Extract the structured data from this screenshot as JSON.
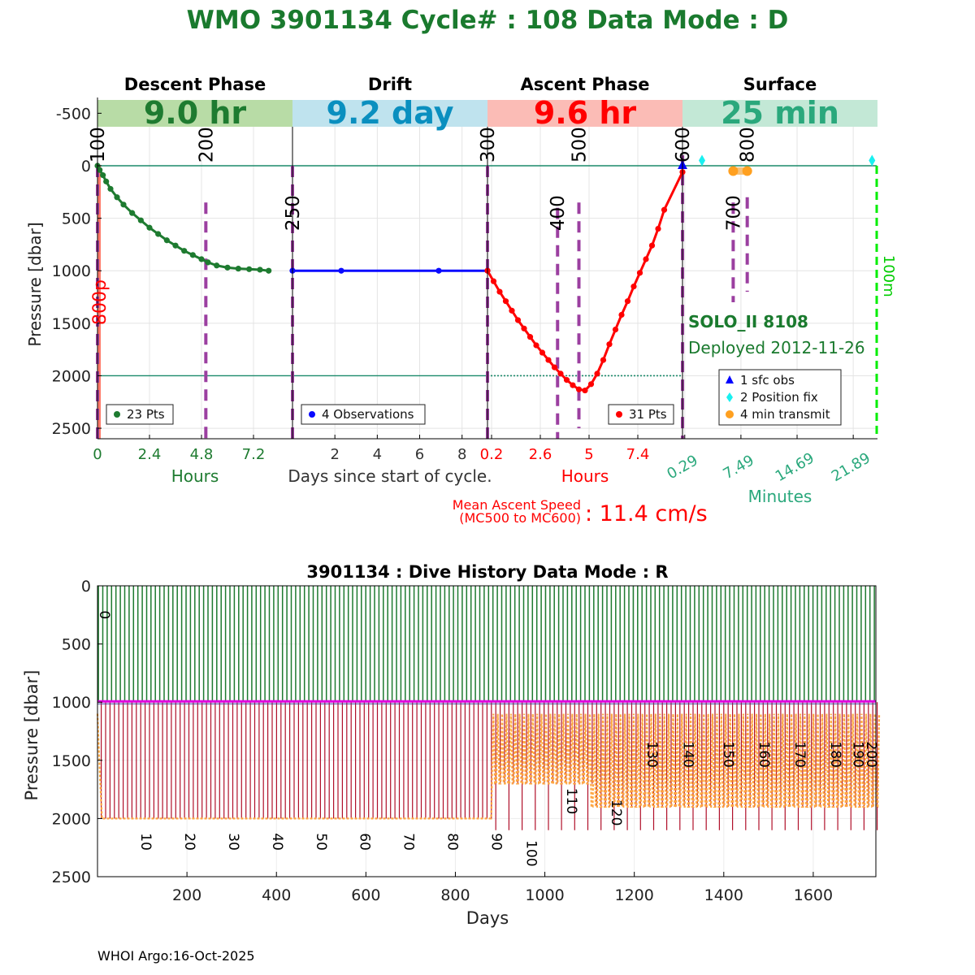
{
  "title": "WMO 3901134   Cycle# : 108   Data Mode : D",
  "footer": "WHOI Argo:16-Oct-2025",
  "colors": {
    "title": "#1a7a2e",
    "descent": "#1e7b30",
    "drift": "#0a0aff",
    "ascent": "#ff0000",
    "surface": "#2aa87c",
    "mc_line": "#9b3fa0",
    "hist_descent": "#1e7b30",
    "hist_ascent": "#b0102a",
    "hist_park": "#e000e0",
    "hist_profile": "#ffa640"
  },
  "chart_data": [
    {
      "type": "line",
      "name": "cycle",
      "ylabel": "Pressure [dbar]",
      "ylim": [
        -650,
        2600
      ],
      "y_ticks": [
        -500,
        0,
        500,
        1000,
        1500,
        2000,
        2500
      ],
      "phases": [
        {
          "title": "Descent Phase",
          "banner": "9.0 hr",
          "banner_bg": "#b8dca6",
          "banner_color": "#1e7b30",
          "x_unit": "Hours",
          "x_unit_color": "#1e7b30",
          "xlim": [
            0,
            9.0
          ],
          "ticks": [
            0,
            2.4,
            4.8,
            7.2
          ],
          "tick_labels": [
            "0",
            "2.4",
            "4.8",
            "7.2"
          ],
          "tick_color": "#1e7b30",
          "tick_rotate": 0
        },
        {
          "title": "Drift",
          "banner": "9.2 day",
          "banner_bg": "#bfe3ee",
          "banner_color": "#0a8fbf",
          "x_unit": "Days since start of cycle.",
          "x_unit_color": "#333333",
          "xlim": [
            0,
            9.2
          ],
          "ticks": [
            2,
            4,
            6,
            8
          ],
          "tick_labels": [
            "2",
            "4",
            "6",
            "8"
          ],
          "tick_color": "#333333",
          "tick_rotate": 0
        },
        {
          "title": "Ascent Phase",
          "banner": "9.6 hr",
          "banner_bg": "#fbbcb6",
          "banner_color": "#ff0000",
          "x_unit": "Hours",
          "x_unit_color": "#ff0000",
          "xlim": [
            0,
            9.6
          ],
          "ticks": [
            0.2,
            2.6,
            5,
            7.4
          ],
          "tick_labels": [
            "0.2",
            "2.6",
            "5",
            "7.4"
          ],
          "tick_color": "#ff0000",
          "tick_rotate": 0
        },
        {
          "title": "Surface",
          "banner": "25 min",
          "banner_bg": "#c3e8d6",
          "banner_color": "#2aa87c",
          "x_unit": "Minutes",
          "x_unit_color": "#2aa87c",
          "xlim": [
            0,
            25
          ],
          "ticks": [
            0.29,
            7.49,
            14.69,
            21.89
          ],
          "tick_labels": [
            "0.29",
            "7.49",
            "14.69",
            "21.89"
          ],
          "tick_color": "#2aa87c",
          "tick_rotate": -30
        }
      ],
      "descent_series": {
        "name": "23 Pts",
        "x": [
          0,
          0.1,
          0.25,
          0.4,
          0.6,
          0.9,
          1.2,
          1.6,
          2.0,
          2.4,
          2.8,
          3.2,
          3.6,
          4.0,
          4.4,
          4.8,
          5.1,
          5.5,
          6.0,
          6.5,
          7.0,
          7.5,
          7.9
        ],
        "y": [
          0,
          40,
          90,
          150,
          220,
          300,
          370,
          450,
          520,
          590,
          650,
          710,
          760,
          810,
          850,
          890,
          920,
          950,
          970,
          980,
          985,
          990,
          1000
        ]
      },
      "drift_series": {
        "name": "4 Observations",
        "x": [
          0,
          2.3,
          6.9,
          9.2
        ],
        "y": [
          1000,
          1000,
          1000,
          1000
        ]
      },
      "ascent_series": {
        "name": "31 Pts",
        "x": [
          0.0,
          0.3,
          0.6,
          0.9,
          1.2,
          1.5,
          1.8,
          2.1,
          2.4,
          2.7,
          3.0,
          3.3,
          3.6,
          3.9,
          4.2,
          4.5,
          4.8,
          5.1,
          5.4,
          5.7,
          6.0,
          6.3,
          6.6,
          6.9,
          7.2,
          7.5,
          7.8,
          8.1,
          8.4,
          8.7,
          9.6
        ],
        "y": [
          1000,
          1100,
          1200,
          1290,
          1380,
          1470,
          1550,
          1630,
          1710,
          1780,
          1850,
          1920,
          1980,
          2040,
          2090,
          2130,
          2140,
          2080,
          1980,
          1850,
          1700,
          1560,
          1420,
          1290,
          1150,
          1020,
          890,
          760,
          600,
          420,
          60
        ]
      },
      "surface_points": {
        "sfc_obs": [
          {
            "x": 0.0,
            "y": 0
          }
        ],
        "position_fix": [
          {
            "x": 2.5,
            "y": -50
          },
          {
            "x": 24.3,
            "y": -50
          }
        ],
        "transmit": [
          {
            "x": 6.5,
            "y": 50
          },
          {
            "x": 8.3,
            "y": 50
          }
        ]
      },
      "ref_lines": [
        {
          "y": 0,
          "color": "#1a8a6a",
          "style": "solid"
        },
        {
          "y": 2000,
          "color": "#1a8a6a",
          "style": "solid"
        },
        {
          "y": 2000,
          "color": "#1a8a6a",
          "style": "dotted",
          "phase": 2
        }
      ],
      "mc_markers": [
        {
          "label": "100",
          "phase": 0,
          "x": 0.0,
          "y0": 0,
          "y1": 2600,
          "label_y": -200
        },
        {
          "label": "200",
          "phase": 0,
          "x": 5.0,
          "y0": 350,
          "y1": 2600,
          "label_y": -200
        },
        {
          "label": "250",
          "phase": 1,
          "x": 0.0,
          "y0": 0,
          "y1": 2600,
          "label_y": 450
        },
        {
          "label": "300",
          "phase": 2,
          "x": 0.0,
          "y0": 0,
          "y1": 2600,
          "label_y": -200
        },
        {
          "label": "400",
          "phase": 2,
          "x": 3.45,
          "y0": 400,
          "y1": 2600,
          "label_y": 450
        },
        {
          "label": "500",
          "phase": 2,
          "x": 4.5,
          "y0": 350,
          "y1": 2500,
          "label_y": -200
        },
        {
          "label": "600",
          "phase": 3,
          "x": 0.0,
          "y0": -100,
          "y1": 2600,
          "label_y": -200
        },
        {
          "label": "700",
          "phase": 3,
          "x": 6.5,
          "y0": 350,
          "y1": 1300,
          "label_y": 450
        },
        {
          "label": "800",
          "phase": 3,
          "x": 8.3,
          "y0": 300,
          "y1": 1200,
          "label_y": -200
        }
      ],
      "side_labels": {
        "left": {
          "text": "800p",
          "color": "#ff0000"
        },
        "right": {
          "text": "100m",
          "color": "#00cc00"
        }
      },
      "float_info": {
        "model": "SOLO_II 8108",
        "deployed": "Deployed 2012-11-26"
      },
      "surface_legend": [
        "1 sfc obs",
        "2 Position fix",
        "4 min transmit"
      ],
      "ascent_speed": {
        "label_line1": "Mean Ascent Speed",
        "label_line2": "(MC500 to MC600)",
        "value": ":  11.4 cm/s"
      }
    },
    {
      "type": "line",
      "name": "dive_history",
      "title": "3901134 : Dive History      Data Mode : R",
      "xlabel": "Days",
      "ylabel": "Pressure [dbar]",
      "xlim": [
        0,
        1740
      ],
      "ylim": [
        0,
        2500
      ],
      "x_ticks": [
        200,
        400,
        600,
        800,
        1000,
        1200,
        1400,
        1600
      ],
      "y_ticks": [
        0,
        500,
        1000,
        1500,
        2000,
        2500
      ],
      "cycle_interval_days": 9.8,
      "cycle_count": 178,
      "park_pressure": 1000,
      "profile_depths": [
        {
          "from": 0,
          "to": 880,
          "depth": 2000
        },
        {
          "from": 880,
          "to": 1100,
          "depth": 1700
        },
        {
          "from": 1100,
          "to": 1740,
          "depth": 1900
        }
      ],
      "cycle_labels": [
        {
          "label": "0",
          "x": 5,
          "y": 250
        },
        {
          "label": "10",
          "x": 98,
          "y": 2200
        },
        {
          "label": "20",
          "x": 196,
          "y": 2200
        },
        {
          "label": "30",
          "x": 294,
          "y": 2200
        },
        {
          "label": "40",
          "x": 392,
          "y": 2200
        },
        {
          "label": "50",
          "x": 490,
          "y": 2200
        },
        {
          "label": "60",
          "x": 588,
          "y": 2200
        },
        {
          "label": "70",
          "x": 686,
          "y": 2200
        },
        {
          "label": "80",
          "x": 784,
          "y": 2200
        },
        {
          "label": "90",
          "x": 882,
          "y": 2200
        },
        {
          "label": "100",
          "x": 960,
          "y": 2300
        },
        {
          "label": "110",
          "x": 1050,
          "y": 1850
        },
        {
          "label": "120",
          "x": 1150,
          "y": 1950
        },
        {
          "label": "130",
          "x": 1230,
          "y": 1450
        },
        {
          "label": "140",
          "x": 1310,
          "y": 1450
        },
        {
          "label": "150",
          "x": 1400,
          "y": 1450
        },
        {
          "label": "160",
          "x": 1480,
          "y": 1450
        },
        {
          "label": "170",
          "x": 1560,
          "y": 1450
        },
        {
          "label": "180",
          "x": 1640,
          "y": 1450
        },
        {
          "label": "190",
          "x": 1690,
          "y": 1450
        },
        {
          "label": "200",
          "x": 1720,
          "y": 1450
        }
      ]
    }
  ]
}
